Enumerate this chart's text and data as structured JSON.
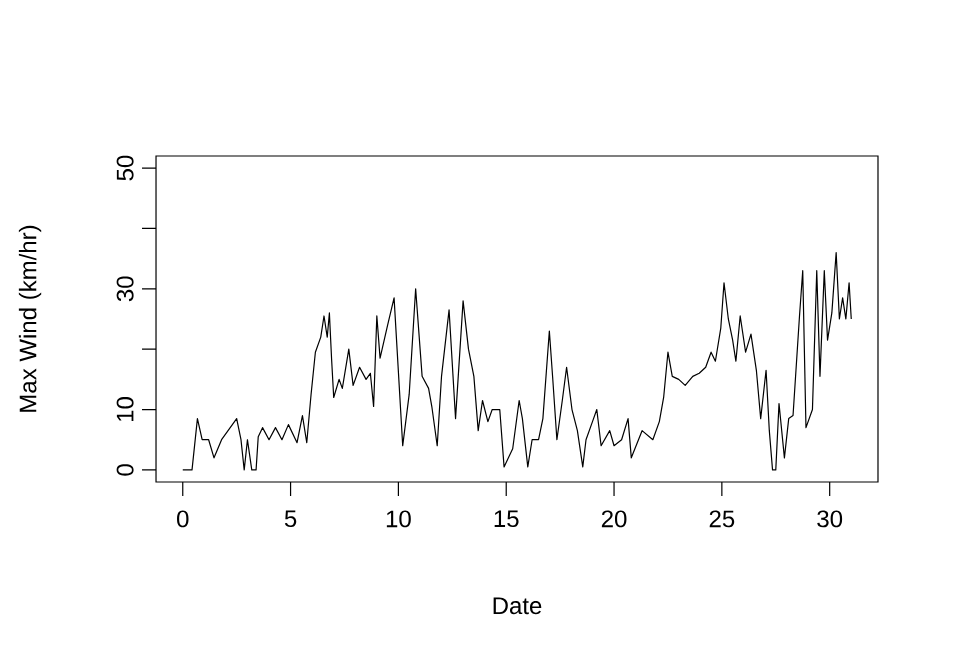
{
  "chart_data": {
    "type": "line",
    "xlabel": "Date",
    "ylabel": "Max Wind (km/hr)",
    "color": "#000000",
    "xlim": [
      -1.24,
      32.24
    ],
    "ylim": [
      -2,
      52
    ],
    "xticks": [
      0,
      5,
      10,
      15,
      20,
      25,
      30
    ],
    "yticks": [
      0,
      10,
      {
        "value": 20,
        "label": null
      },
      30,
      {
        "value": 40,
        "label": null
      },
      50
    ],
    "x": [
      0,
      0.43,
      0.68,
      0.9,
      1.2,
      1.45,
      1.8,
      2.2,
      2.5,
      2.7,
      2.85,
      3.0,
      3.2,
      3.4,
      3.5,
      3.7,
      4.0,
      4.3,
      4.6,
      4.9,
      5.3,
      5.55,
      5.75,
      5.95,
      6.15,
      6.4,
      6.55,
      6.7,
      6.8,
      6.9,
      7.0,
      7.25,
      7.4,
      7.7,
      7.9,
      8.2,
      8.5,
      8.7,
      8.85,
      9.0,
      9.15,
      9.5,
      9.8,
      10.2,
      10.5,
      10.8,
      11.1,
      11.4,
      11.55,
      11.8,
      12.0,
      12.35,
      12.65,
      13.0,
      13.25,
      13.5,
      13.7,
      13.9,
      14.15,
      14.35,
      14.7,
      14.9,
      15.3,
      15.6,
      15.75,
      16.0,
      16.2,
      16.5,
      16.7,
      17.0,
      17.15,
      17.35,
      17.6,
      17.8,
      18.05,
      18.3,
      18.55,
      18.7,
      19.0,
      19.2,
      19.4,
      19.8,
      20.0,
      20.35,
      20.65,
      20.8,
      21.3,
      21.8,
      22.1,
      22.3,
      22.5,
      22.7,
      23.0,
      23.3,
      23.65,
      23.95,
      24.25,
      24.5,
      24.7,
      24.95,
      25.1,
      25.3,
      25.5,
      25.65,
      25.85,
      26.1,
      26.35,
      26.6,
      26.8,
      27.05,
      27.2,
      27.35,
      27.5,
      27.65,
      27.9,
      28.1,
      28.3,
      28.6,
      28.75,
      28.9,
      29.2,
      29.4,
      29.55,
      29.75,
      29.9,
      30.1,
      30.3,
      30.45,
      30.6,
      30.75,
      30.9,
      31.0
    ],
    "values": [
      0,
      0,
      8.5,
      5,
      5,
      2,
      5,
      7,
      8.5,
      5,
      0,
      5,
      0,
      0,
      5.5,
      7,
      5,
      7,
      5,
      7.5,
      4.5,
      9,
      4.5,
      12.5,
      19.5,
      22,
      25.5,
      22,
      26,
      18.5,
      12,
      15,
      13.5,
      20,
      14,
      17,
      15,
      16,
      10.5,
      25.5,
      18.5,
      24,
      28.5,
      4,
      12.5,
      30,
      15.5,
      13.5,
      10.5,
      4,
      15.5,
      26.5,
      8.5,
      28,
      20,
      15.5,
      6.5,
      11.5,
      8,
      10,
      10,
      0.5,
      3.5,
      11.5,
      8.5,
      0.5,
      5,
      5,
      8.5,
      23,
      15.5,
      5,
      11.5,
      17,
      10,
      6.5,
      0.5,
      5,
      8,
      10,
      4,
      6.5,
      4,
      5,
      8.5,
      2,
      6.5,
      5,
      8,
      12,
      19.5,
      15.5,
      15,
      14,
      15.5,
      16,
      17,
      19.5,
      18,
      23.5,
      31,
      25,
      21.5,
      18,
      25.5,
      19.5,
      22.5,
      16.5,
      8.5,
      16.5,
      6.5,
      0,
      0,
      11,
      2,
      8.5,
      9,
      25.5,
      33,
      7,
      10,
      33,
      15.5,
      33,
      21.5,
      26,
      36,
      25,
      28.5,
      25,
      31,
      25
    ]
  }
}
